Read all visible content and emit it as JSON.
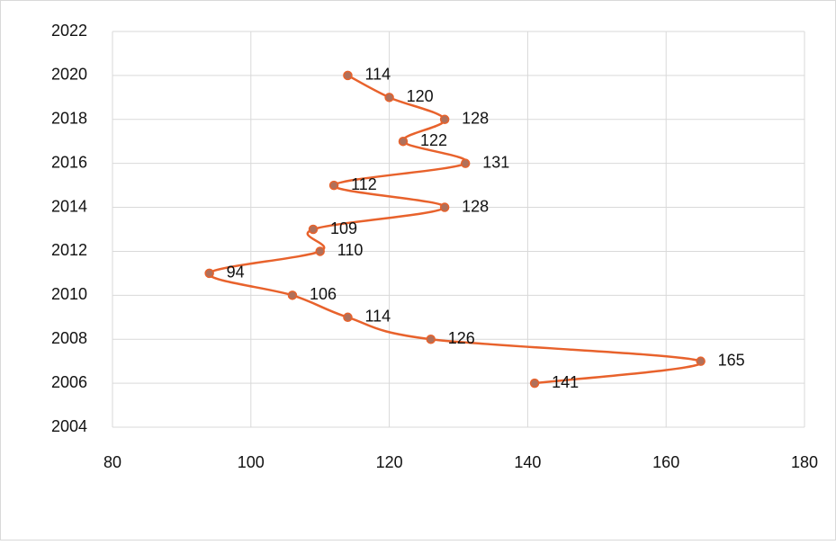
{
  "chart_data": {
    "type": "scatter",
    "smooth": true,
    "grid": true,
    "series": [
      {
        "color": "#e8622c",
        "marker_color": "#b0705a",
        "x": [
          141,
          165,
          126,
          114,
          106,
          94,
          110,
          109,
          128,
          112,
          131,
          122,
          128,
          120,
          114
        ],
        "y": [
          2006,
          2007,
          2008,
          2009,
          2010,
          2011,
          2012,
          2013,
          2014,
          2015,
          2016,
          2017,
          2018,
          2019,
          2020
        ]
      }
    ],
    "xlim": [
      80,
      180
    ],
    "xticks": [
      80,
      100,
      120,
      140,
      160,
      180
    ],
    "ylim": [
      2004,
      2022
    ],
    "yticks": [
      2004,
      2006,
      2008,
      2010,
      2012,
      2014,
      2016,
      2018,
      2020,
      2022
    ]
  }
}
